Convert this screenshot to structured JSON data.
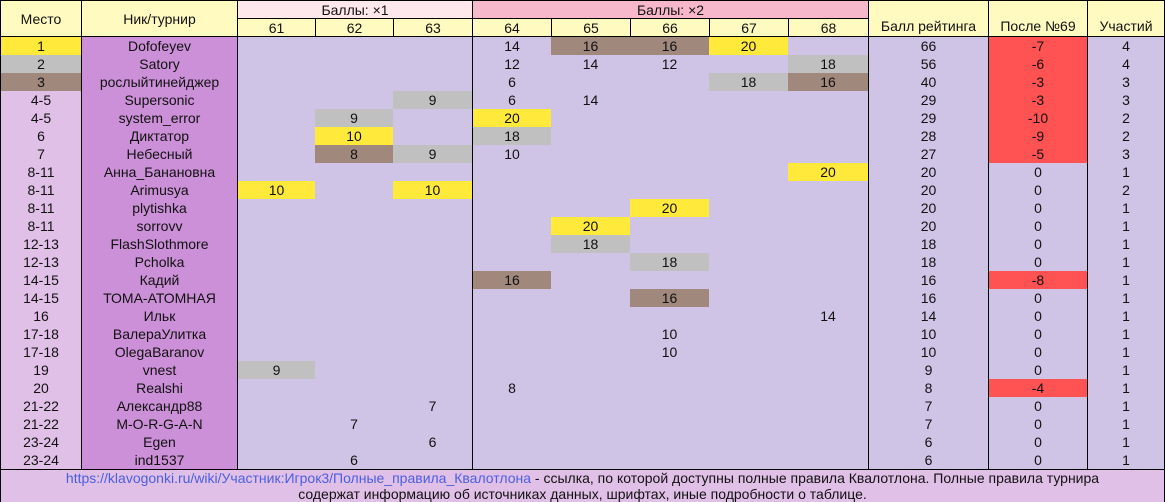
{
  "colors": {
    "gold": "#ffe93b",
    "silver": "#c0c0c0",
    "bronze": "#a1887d",
    "negative": "#ff5252",
    "cell_bg": "#d0c4e6",
    "header_bg": "#fffac0",
    "nick_bg": "#cc90d8",
    "place_bg": "#e1c0e8",
    "group1_bg": "#ffe8ec",
    "group2_bg": "#f8b8cc",
    "link": "#4a5ee0"
  },
  "header": {
    "place": "Место",
    "nick": "Ник/турнир",
    "group1": "Баллы: ×1",
    "group2": "Баллы: ×2",
    "tournaments": [
      "61",
      "62",
      "63",
      "64",
      "65",
      "66",
      "67",
      "68"
    ],
    "rating": "Балл рейтинга",
    "after": "После №69",
    "count": "Участий"
  },
  "rows": [
    {
      "place": "1",
      "medal": "g",
      "nick": "Dofofeyev",
      "scores": [
        [
          "",
          ""
        ],
        [
          "",
          ""
        ],
        [
          "",
          ""
        ],
        [
          "14",
          ""
        ],
        [
          "16",
          "b"
        ],
        [
          "16",
          "b"
        ],
        [
          "20",
          "g"
        ],
        [
          "",
          ""
        ]
      ],
      "rating": "66",
      "after": "-7",
      "count": "4"
    },
    {
      "place": "2",
      "medal": "s",
      "nick": "Satory",
      "scores": [
        [
          "",
          ""
        ],
        [
          "",
          ""
        ],
        [
          "",
          ""
        ],
        [
          "12",
          ""
        ],
        [
          "14",
          ""
        ],
        [
          "12",
          ""
        ],
        [
          "",
          ""
        ],
        [
          "18",
          "s"
        ]
      ],
      "rating": "56",
      "after": "-6",
      "count": "4"
    },
    {
      "place": "3",
      "medal": "b",
      "nick": "рослыйтинейджер",
      "scores": [
        [
          "",
          ""
        ],
        [
          "",
          ""
        ],
        [
          "",
          ""
        ],
        [
          "6",
          ""
        ],
        [
          "",
          ""
        ],
        [
          "",
          ""
        ],
        [
          "18",
          "s"
        ],
        [
          "16",
          "b"
        ]
      ],
      "rating": "40",
      "after": "-3",
      "count": "3"
    },
    {
      "place": "4-5",
      "medal": "",
      "nick": "Supersonic",
      "scores": [
        [
          "",
          ""
        ],
        [
          "",
          ""
        ],
        [
          "9",
          "s"
        ],
        [
          "6",
          ""
        ],
        [
          "14",
          ""
        ],
        [
          "",
          ""
        ],
        [
          "",
          ""
        ],
        [
          "",
          ""
        ]
      ],
      "rating": "29",
      "after": "-3",
      "count": "3"
    },
    {
      "place": "4-5",
      "medal": "",
      "nick": "system_error",
      "scores": [
        [
          "",
          ""
        ],
        [
          "9",
          "s"
        ],
        [
          "",
          ""
        ],
        [
          "20",
          "g"
        ],
        [
          "",
          ""
        ],
        [
          "",
          ""
        ],
        [
          "",
          ""
        ],
        [
          "",
          ""
        ]
      ],
      "rating": "29",
      "after": "-10",
      "count": "2"
    },
    {
      "place": "6",
      "medal": "",
      "nick": "Диктатор",
      "scores": [
        [
          "",
          ""
        ],
        [
          "10",
          "g"
        ],
        [
          "",
          ""
        ],
        [
          "18",
          "s"
        ],
        [
          "",
          ""
        ],
        [
          "",
          ""
        ],
        [
          "",
          ""
        ],
        [
          "",
          ""
        ]
      ],
      "rating": "28",
      "after": "-9",
      "count": "2"
    },
    {
      "place": "7",
      "medal": "",
      "nick": "Небесный",
      "scores": [
        [
          "",
          ""
        ],
        [
          "8",
          "b"
        ],
        [
          "9",
          "s"
        ],
        [
          "10",
          ""
        ],
        [
          "",
          ""
        ],
        [
          "",
          ""
        ],
        [
          "",
          ""
        ],
        [
          "",
          ""
        ]
      ],
      "rating": "27",
      "after": "-5",
      "count": "3"
    },
    {
      "place": "8-11",
      "medal": "",
      "nick": "Анна_Банановна",
      "scores": [
        [
          "",
          ""
        ],
        [
          "",
          ""
        ],
        [
          "",
          ""
        ],
        [
          "",
          ""
        ],
        [
          "",
          ""
        ],
        [
          "",
          ""
        ],
        [
          "",
          ""
        ],
        [
          "20",
          "g"
        ]
      ],
      "rating": "20",
      "after": "0",
      "count": "1"
    },
    {
      "place": "8-11",
      "medal": "",
      "nick": "Arimusya",
      "scores": [
        [
          "10",
          "g"
        ],
        [
          "",
          ""
        ],
        [
          "10",
          "g"
        ],
        [
          "",
          ""
        ],
        [
          "",
          ""
        ],
        [
          "",
          ""
        ],
        [
          "",
          ""
        ],
        [
          "",
          ""
        ]
      ],
      "rating": "20",
      "after": "0",
      "count": "2"
    },
    {
      "place": "8-11",
      "medal": "",
      "nick": "plytishka",
      "scores": [
        [
          "",
          ""
        ],
        [
          "",
          ""
        ],
        [
          "",
          ""
        ],
        [
          "",
          ""
        ],
        [
          "",
          ""
        ],
        [
          "20",
          "g"
        ],
        [
          "",
          ""
        ],
        [
          "",
          ""
        ]
      ],
      "rating": "20",
      "after": "0",
      "count": "1"
    },
    {
      "place": "8-11",
      "medal": "",
      "nick": "sorrovv",
      "scores": [
        [
          "",
          ""
        ],
        [
          "",
          ""
        ],
        [
          "",
          ""
        ],
        [
          "",
          ""
        ],
        [
          "20",
          "g"
        ],
        [
          "",
          ""
        ],
        [
          "",
          ""
        ],
        [
          "",
          ""
        ]
      ],
      "rating": "20",
      "after": "0",
      "count": "1"
    },
    {
      "place": "12-13",
      "medal": "",
      "nick": "FlashSlothmore",
      "scores": [
        [
          "",
          ""
        ],
        [
          "",
          ""
        ],
        [
          "",
          ""
        ],
        [
          "",
          ""
        ],
        [
          "18",
          "s"
        ],
        [
          "",
          ""
        ],
        [
          "",
          ""
        ],
        [
          "",
          ""
        ]
      ],
      "rating": "18",
      "after": "0",
      "count": "1"
    },
    {
      "place": "12-13",
      "medal": "",
      "nick": "Pcholka",
      "scores": [
        [
          "",
          ""
        ],
        [
          "",
          ""
        ],
        [
          "",
          ""
        ],
        [
          "",
          ""
        ],
        [
          "",
          ""
        ],
        [
          "18",
          "s"
        ],
        [
          "",
          ""
        ],
        [
          "",
          ""
        ]
      ],
      "rating": "18",
      "after": "0",
      "count": "1"
    },
    {
      "place": "14-15",
      "medal": "",
      "nick": "Кадий",
      "scores": [
        [
          "",
          ""
        ],
        [
          "",
          ""
        ],
        [
          "",
          ""
        ],
        [
          "16",
          "b"
        ],
        [
          "",
          ""
        ],
        [
          "",
          ""
        ],
        [
          "",
          ""
        ],
        [
          "",
          ""
        ]
      ],
      "rating": "16",
      "after": "-8",
      "count": "1"
    },
    {
      "place": "14-15",
      "medal": "",
      "nick": "ТОМА-АТОМНАЯ",
      "scores": [
        [
          "",
          ""
        ],
        [
          "",
          ""
        ],
        [
          "",
          ""
        ],
        [
          "",
          ""
        ],
        [
          "",
          ""
        ],
        [
          "16",
          "b"
        ],
        [
          "",
          ""
        ],
        [
          "",
          ""
        ]
      ],
      "rating": "16",
      "after": "0",
      "count": "1"
    },
    {
      "place": "16",
      "medal": "",
      "nick": "Ильк",
      "scores": [
        [
          "",
          ""
        ],
        [
          "",
          ""
        ],
        [
          "",
          ""
        ],
        [
          "",
          ""
        ],
        [
          "",
          ""
        ],
        [
          "",
          ""
        ],
        [
          "",
          ""
        ],
        [
          "14",
          ""
        ]
      ],
      "rating": "14",
      "after": "0",
      "count": "1"
    },
    {
      "place": "17-18",
      "medal": "",
      "nick": "ВалераУлитка",
      "scores": [
        [
          "",
          ""
        ],
        [
          "",
          ""
        ],
        [
          "",
          ""
        ],
        [
          "",
          ""
        ],
        [
          "",
          ""
        ],
        [
          "10",
          ""
        ],
        [
          "",
          ""
        ],
        [
          "",
          ""
        ]
      ],
      "rating": "10",
      "after": "0",
      "count": "1"
    },
    {
      "place": "17-18",
      "medal": "",
      "nick": "OlegaBaranov",
      "scores": [
        [
          "",
          ""
        ],
        [
          "",
          ""
        ],
        [
          "",
          ""
        ],
        [
          "",
          ""
        ],
        [
          "",
          ""
        ],
        [
          "10",
          ""
        ],
        [
          "",
          ""
        ],
        [
          "",
          ""
        ]
      ],
      "rating": "10",
      "after": "0",
      "count": "1"
    },
    {
      "place": "19",
      "medal": "",
      "nick": "vnest",
      "scores": [
        [
          "9",
          "s"
        ],
        [
          "",
          ""
        ],
        [
          "",
          ""
        ],
        [
          "",
          ""
        ],
        [
          "",
          ""
        ],
        [
          "",
          ""
        ],
        [
          "",
          ""
        ],
        [
          "",
          ""
        ]
      ],
      "rating": "9",
      "after": "0",
      "count": "1"
    },
    {
      "place": "20",
      "medal": "",
      "nick": "Realshi",
      "scores": [
        [
          "",
          ""
        ],
        [
          "",
          ""
        ],
        [
          "",
          ""
        ],
        [
          "8",
          ""
        ],
        [
          "",
          ""
        ],
        [
          "",
          ""
        ],
        [
          "",
          ""
        ],
        [
          "",
          ""
        ]
      ],
      "rating": "8",
      "after": "-4",
      "count": "1"
    },
    {
      "place": "21-22",
      "medal": "",
      "nick": "Александр88",
      "scores": [
        [
          "",
          ""
        ],
        [
          "",
          ""
        ],
        [
          "7",
          ""
        ],
        [
          "",
          ""
        ],
        [
          "",
          ""
        ],
        [
          "",
          ""
        ],
        [
          "",
          ""
        ],
        [
          "",
          ""
        ]
      ],
      "rating": "7",
      "after": "0",
      "count": "1"
    },
    {
      "place": "21-22",
      "medal": "",
      "nick": "M-O-R-G-A-N",
      "scores": [
        [
          "",
          ""
        ],
        [
          "7",
          ""
        ],
        [
          "",
          ""
        ],
        [
          "",
          ""
        ],
        [
          "",
          ""
        ],
        [
          "",
          ""
        ],
        [
          "",
          ""
        ],
        [
          "",
          ""
        ]
      ],
      "rating": "7",
      "after": "0",
      "count": "1"
    },
    {
      "place": "23-24",
      "medal": "",
      "nick": "Egen",
      "scores": [
        [
          "",
          ""
        ],
        [
          "",
          ""
        ],
        [
          "6",
          ""
        ],
        [
          "",
          ""
        ],
        [
          "",
          ""
        ],
        [
          "",
          ""
        ],
        [
          "",
          ""
        ],
        [
          "",
          ""
        ]
      ],
      "rating": "6",
      "after": "0",
      "count": "1"
    },
    {
      "place": "23-24",
      "medal": "",
      "nick": "ind1537",
      "scores": [
        [
          "",
          ""
        ],
        [
          "6",
          ""
        ],
        [
          "",
          ""
        ],
        [
          "",
          ""
        ],
        [
          "",
          ""
        ],
        [
          "",
          ""
        ],
        [
          "",
          ""
        ],
        [
          "",
          ""
        ]
      ],
      "rating": "6",
      "after": "0",
      "count": "1"
    }
  ],
  "footer": {
    "link": "https://klavogonki.ru/wiki/Участник:Игрок3/Полные_правила_Квалотлона",
    "text1": " - ссылка, по которой доступны полные правила Квалотлона. Полные правила турнира",
    "text2": "содержат информацию об источниках данных, шрифтах, иные подробности о таблице."
  }
}
